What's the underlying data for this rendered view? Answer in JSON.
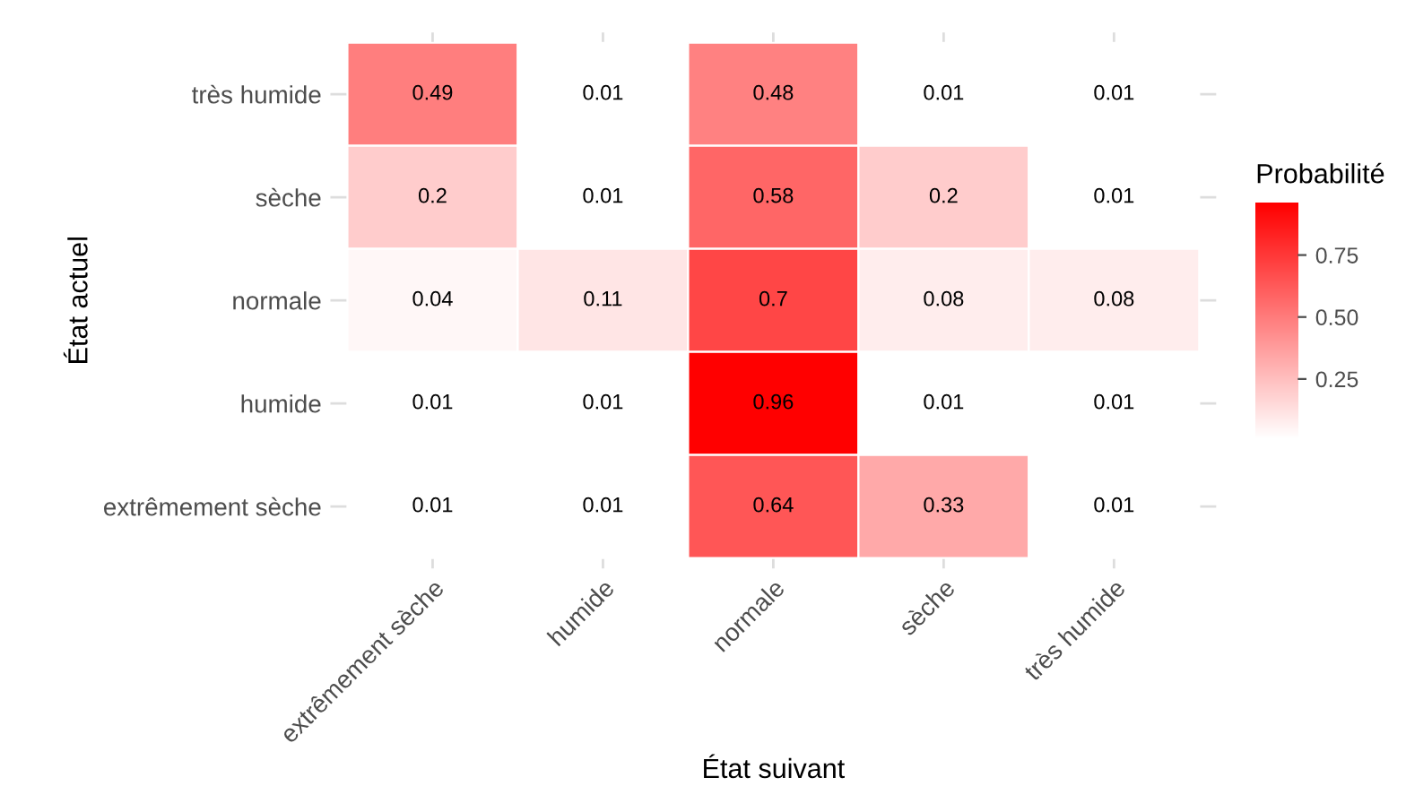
{
  "chart_data": {
    "type": "heatmap",
    "xlabel": "État suivant",
    "ylabel": "État actuel",
    "clabel": "Probabilité",
    "categories": [
      "extrêmement sèche",
      "humide",
      "normale",
      "sèche",
      "très humide"
    ],
    "y_categories": [
      "très humide",
      "sèche",
      "normale",
      "humide",
      "extrêmement sèche"
    ],
    "cells": [
      [
        0.49,
        0.01,
        0.48,
        0.01,
        0.01
      ],
      [
        0.2,
        0.01,
        0.58,
        0.2,
        0.01
      ],
      [
        0.04,
        0.11,
        0.7,
        0.08,
        0.08
      ],
      [
        0.01,
        0.01,
        0.96,
        0.01,
        0.01
      ],
      [
        0.01,
        0.01,
        0.64,
        0.33,
        0.01
      ]
    ],
    "clim": [
      0.01,
      0.96
    ],
    "cticks": [
      {
        "value": 0.25,
        "label": "0.25"
      },
      {
        "value": 0.5,
        "label": "0.50"
      },
      {
        "value": 0.75,
        "label": "0.75"
      }
    ],
    "data_labels": true,
    "grid": true
  }
}
